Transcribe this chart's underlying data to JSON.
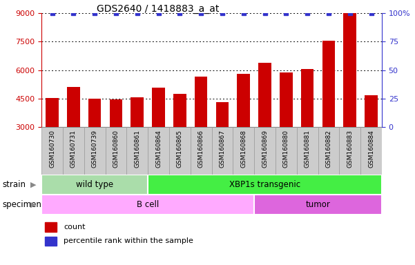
{
  "title": "GDS2640 / 1418883_a_at",
  "samples": [
    "GSM160730",
    "GSM160731",
    "GSM160739",
    "GSM160860",
    "GSM160861",
    "GSM160864",
    "GSM160865",
    "GSM160866",
    "GSM160867",
    "GSM160868",
    "GSM160869",
    "GSM160880",
    "GSM160881",
    "GSM160882",
    "GSM160883",
    "GSM160884"
  ],
  "counts": [
    4530,
    5120,
    4510,
    4470,
    4580,
    5100,
    4760,
    5650,
    4320,
    5820,
    6400,
    5870,
    6050,
    7550,
    9000,
    4700
  ],
  "bar_color": "#cc0000",
  "dot_color": "#3333cc",
  "ylim_left": [
    3000,
    9000
  ],
  "ylim_right": [
    0,
    100
  ],
  "yticks_left": [
    3000,
    4500,
    6000,
    7500,
    9000
  ],
  "yticks_right": [
    0,
    25,
    50,
    75,
    100
  ],
  "strain_groups": [
    {
      "label": "wild type",
      "start": 0,
      "end": 5,
      "color": "#aaddaa"
    },
    {
      "label": "XBP1s transgenic",
      "start": 5,
      "end": 16,
      "color": "#44ee44"
    }
  ],
  "specimen_groups": [
    {
      "label": "B cell",
      "start": 0,
      "end": 10,
      "color": "#ffaaff"
    },
    {
      "label": "tumor",
      "start": 10,
      "end": 16,
      "color": "#dd66dd"
    }
  ],
  "strain_label": "strain",
  "specimen_label": "specimen",
  "legend_items": [
    {
      "color": "#cc0000",
      "label": "count"
    },
    {
      "color": "#3333cc",
      "label": "percentile rank within the sample"
    }
  ],
  "left_tick_color": "#cc0000",
  "right_tick_color": "#3333cc",
  "bar_width": 0.6,
  "background_color": "#ffffff",
  "tick_bg_color": "#cccccc"
}
